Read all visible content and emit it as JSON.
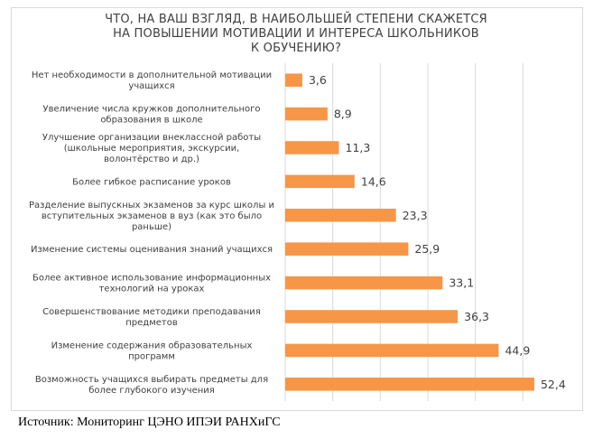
{
  "chart_data": {
    "type": "bar",
    "orientation": "horizontal",
    "title_lines": [
      "ЧТО, НА ВАШ ВЗГЛЯД, В НАИБОЛЬШЕЙ СТЕПЕНИ СКАЖЕТСЯ",
      "НА ПОВЫШЕНИИ МОТИВАЦИИ И ИНТЕРЕСА ШКОЛЬНИКОВ",
      "К ОБУЧЕНИЮ?"
    ],
    "categories": [
      [
        "Нет необходимости в дополнительной мотивации",
        "учащихся"
      ],
      [
        "Увеличение числа кружков дополнительного",
        "образования в школе"
      ],
      [
        "Улучшение организации внеклассной работы",
        "(школьные мероприятия, экскурсии,",
        "волонтёрство и др.)"
      ],
      [
        "Более гибкое расписание уроков"
      ],
      [
        "Разделение выпускных экзаменов за курс школы и",
        "вступительных экзаменов в вуз (как это было",
        "раньше)"
      ],
      [
        "Изменение системы оценивания знаний учащихся"
      ],
      [
        "Более активное использование информационных",
        "технологий на уроках"
      ],
      [
        "Совершенствование методики преподавания",
        "предметов"
      ],
      [
        "Изменение содержания образовательных",
        "программ"
      ],
      [
        "Возможность учащихся выбирать предметы для",
        "более глубокого изучения"
      ]
    ],
    "values": [
      3.6,
      8.9,
      11.3,
      14.6,
      23.3,
      25.9,
      33.1,
      36.3,
      44.9,
      52.4
    ],
    "value_labels": [
      "3,6",
      "8,9",
      "11,3",
      "14,6",
      "23,3",
      "25,9",
      "33,1",
      "36,3",
      "44,9",
      "52,4"
    ],
    "xlim": [
      0,
      60
    ],
    "grid": true,
    "legend": "none",
    "colors": {
      "bar": "#F79646",
      "grid": "#D9D9D9",
      "text": "#404040"
    }
  },
  "source": "Источник: Мониторинг ЦЭНО ИПЭИ РАНХиГС"
}
